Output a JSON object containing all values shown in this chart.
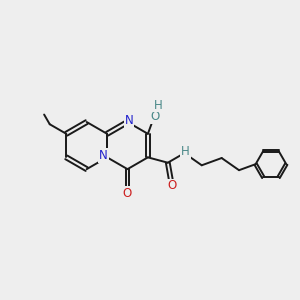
{
  "bg": "#eeeeee",
  "bond_color": "#1a1a1a",
  "N_color": "#2020cc",
  "O_color": "#cc2020",
  "H_color": "#4a8888",
  "lw": 1.4,
  "fs": 8.5,
  "figsize": [
    3.0,
    3.0
  ],
  "dpi": 100,
  "xlim": [
    0,
    10
  ],
  "ylim": [
    0,
    10
  ]
}
